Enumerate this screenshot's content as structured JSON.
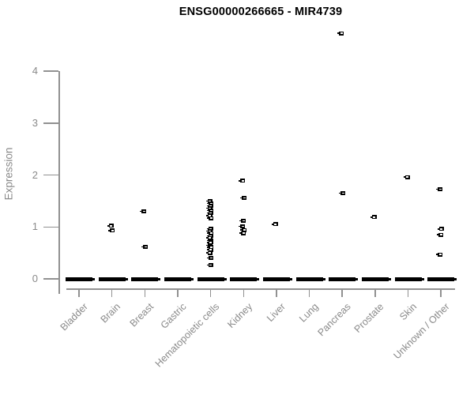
{
  "title": "ENSG00000266665 - MIR4739",
  "chart_data": {
    "type": "scatter",
    "title": "ENSG00000266665 - MIR4739",
    "xlabel": "",
    "ylabel": "Expression",
    "ylim": [
      0,
      4
    ],
    "yticks": [
      0,
      1,
      2,
      3,
      4
    ],
    "grid": false,
    "legend": "none",
    "marker": "small black square with white center dash",
    "categories": [
      "Bladder",
      "Brain",
      "Breast",
      "Gastric",
      "Hematopoietic cells",
      "Kidney",
      "Liver",
      "Lung",
      "Pancreas",
      "Prostate",
      "Skin",
      "Unknown / Other"
    ],
    "series": [
      {
        "category": "Bladder",
        "zero_cluster": true,
        "nonzero_values": []
      },
      {
        "category": "Brain",
        "zero_cluster": true,
        "nonzero_values": [
          1.02,
          0.93
        ]
      },
      {
        "category": "Breast",
        "zero_cluster": true,
        "nonzero_values": [
          1.3,
          0.62
        ]
      },
      {
        "category": "Gastric",
        "zero_cluster": true,
        "nonzero_values": []
      },
      {
        "category": "Hematopoietic cells",
        "zero_cluster": true,
        "nonzero_values": [
          1.5,
          1.45,
          1.41,
          1.36,
          1.32,
          1.27,
          1.22,
          1.17,
          0.97,
          0.92,
          0.88,
          0.83,
          0.79,
          0.74,
          0.7,
          0.65,
          0.61,
          0.56,
          0.5,
          0.4,
          0.27
        ]
      },
      {
        "category": "Kidney",
        "zero_cluster": true,
        "nonzero_values": [
          1.89,
          1.56,
          1.12,
          1.01,
          0.94,
          0.88
        ]
      },
      {
        "category": "Liver",
        "zero_cluster": true,
        "nonzero_values": [
          1.05
        ]
      },
      {
        "category": "Lung",
        "zero_cluster": true,
        "nonzero_values": []
      },
      {
        "category": "Pancreas",
        "zero_cluster": true,
        "nonzero_values": [
          4.73,
          1.65
        ]
      },
      {
        "category": "Prostate",
        "zero_cluster": true,
        "nonzero_values": [
          1.19
        ]
      },
      {
        "category": "Skin",
        "zero_cluster": true,
        "nonzero_values": [
          1.96
        ]
      },
      {
        "category": "Unknown / Other",
        "zero_cluster": true,
        "nonzero_values": [
          1.73,
          0.96,
          0.85,
          0.47
        ]
      }
    ],
    "colors": {
      "marker": "#000000",
      "axis": "#919191",
      "tick_label": "#8a8a8a",
      "title": "#000000",
      "background": "#ffffff"
    }
  }
}
